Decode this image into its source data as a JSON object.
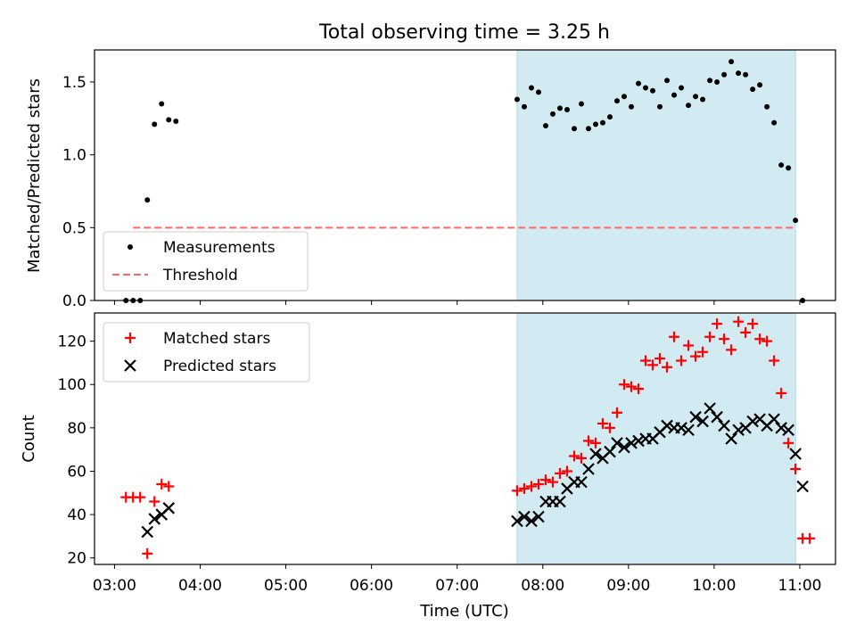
{
  "title": "Total observing time = 3.25 h",
  "xlabel": "Time (UTC)",
  "colors": {
    "shade": "#add8e6",
    "measure": "#000000",
    "threshold": "#ff6666",
    "matched": "#ff0000",
    "predicted": "#000000"
  },
  "chart_data": [
    {
      "type": "scatter",
      "ylabel": "Matched/Predicted stars",
      "xlim": [
        "02:46",
        "11:25"
      ],
      "ylim": [
        0,
        1.72
      ],
      "yticks": [
        "0.0",
        "0.5",
        "1.0",
        "1.5"
      ],
      "shaded_interval": [
        "07:42",
        "10:57"
      ],
      "legend": {
        "placement": "lower-left",
        "entries": [
          "Measurements",
          "Threshold"
        ]
      },
      "series": [
        {
          "name": "Measurements",
          "marker": "dot",
          "x": [
            "03:08",
            "03:13",
            "03:18",
            "03:23",
            "03:28",
            "03:33",
            "03:38",
            "03:43",
            "07:42",
            "07:47",
            "07:52",
            "07:57",
            "08:02",
            "08:07",
            "08:12",
            "08:17",
            "08:22",
            "08:27",
            "08:32",
            "08:37",
            "08:42",
            "08:47",
            "08:52",
            "08:57",
            "09:02",
            "09:07",
            "09:12",
            "09:17",
            "09:22",
            "09:27",
            "09:32",
            "09:37",
            "09:42",
            "09:47",
            "09:52",
            "09:57",
            "10:02",
            "10:07",
            "10:12",
            "10:17",
            "10:22",
            "10:27",
            "10:32",
            "10:37",
            "10:42",
            "10:47",
            "10:52",
            "10:57",
            "11:02"
          ],
          "y": [
            0.0,
            0.0,
            0.0,
            0.69,
            1.21,
            1.35,
            1.24,
            1.23,
            1.38,
            1.33,
            1.46,
            1.43,
            1.2,
            1.28,
            1.32,
            1.31,
            1.18,
            1.35,
            1.18,
            1.21,
            1.22,
            1.26,
            1.37,
            1.4,
            1.33,
            1.49,
            1.46,
            1.44,
            1.33,
            1.51,
            1.41,
            1.46,
            1.34,
            1.4,
            1.38,
            1.51,
            1.5,
            1.55,
            1.64,
            1.56,
            1.55,
            1.45,
            1.48,
            1.33,
            1.22,
            0.93,
            0.91,
            0.55,
            0.0
          ]
        },
        {
          "name": "Threshold",
          "type": "line",
          "style": "dashed",
          "x": [
            "03:13",
            "10:57"
          ],
          "y": [
            0.5,
            0.5
          ]
        }
      ]
    },
    {
      "type": "scatter",
      "ylabel": "Count",
      "xlim": [
        "02:46",
        "11:25"
      ],
      "ylim": [
        17,
        133
      ],
      "yticks": [
        "20",
        "40",
        "60",
        "80",
        "100",
        "120"
      ],
      "xticks": [
        "03:00",
        "04:00",
        "05:00",
        "06:00",
        "07:00",
        "08:00",
        "09:00",
        "10:00",
        "11:00"
      ],
      "shaded_interval": [
        "07:42",
        "10:57"
      ],
      "legend": {
        "placement": "top-left",
        "entries": [
          "Matched stars",
          "Predicted stars"
        ]
      },
      "series": [
        {
          "name": "Matched stars",
          "marker": "plus",
          "x": [
            "03:08",
            "03:13",
            "03:18",
            "03:23",
            "03:28",
            "03:33",
            "03:38",
            "07:42",
            "07:47",
            "07:52",
            "07:57",
            "08:02",
            "08:07",
            "08:12",
            "08:17",
            "08:22",
            "08:27",
            "08:32",
            "08:37",
            "08:42",
            "08:47",
            "08:52",
            "08:57",
            "09:02",
            "09:07",
            "09:12",
            "09:17",
            "09:22",
            "09:27",
            "09:32",
            "09:37",
            "09:42",
            "09:47",
            "09:52",
            "09:57",
            "10:02",
            "10:07",
            "10:12",
            "10:17",
            "10:22",
            "10:27",
            "10:32",
            "10:37",
            "10:42",
            "10:47",
            "10:52",
            "10:57",
            "11:02",
            "11:07"
          ],
          "y": [
            48,
            48,
            48,
            22,
            46,
            54,
            53,
            51,
            52,
            53,
            54,
            56,
            55,
            59,
            60,
            67,
            66,
            74,
            73,
            82,
            80,
            87,
            100,
            99,
            98,
            111,
            109,
            112,
            108,
            122,
            111,
            118,
            113,
            115,
            122,
            128,
            121,
            116,
            129,
            124,
            128,
            121,
            120,
            111,
            96,
            73,
            61,
            29,
            29
          ]
        },
        {
          "name": "Predicted stars",
          "marker": "x",
          "x": [
            "03:23",
            "03:28",
            "03:33",
            "03:38",
            "07:42",
            "07:47",
            "07:52",
            "07:57",
            "08:02",
            "08:07",
            "08:12",
            "08:17",
            "08:22",
            "08:27",
            "08:32",
            "08:37",
            "08:42",
            "08:47",
            "08:52",
            "08:57",
            "09:02",
            "09:07",
            "09:12",
            "09:17",
            "09:22",
            "09:27",
            "09:32",
            "09:37",
            "09:42",
            "09:47",
            "09:52",
            "09:57",
            "10:02",
            "10:07",
            "10:12",
            "10:17",
            "10:22",
            "10:27",
            "10:32",
            "10:37",
            "10:42",
            "10:47",
            "10:52",
            "10:57",
            "11:02"
          ],
          "y": [
            32,
            38,
            40,
            43,
            37,
            39,
            37,
            39,
            46,
            46,
            46,
            52,
            55,
            55,
            61,
            68,
            66,
            69,
            73,
            71,
            73,
            74,
            75,
            75,
            78,
            81,
            80,
            80,
            79,
            85,
            83,
            89,
            85,
            81,
            75,
            79,
            80,
            83,
            84,
            81,
            84,
            80,
            79,
            68,
            53
          ]
        }
      ]
    }
  ]
}
